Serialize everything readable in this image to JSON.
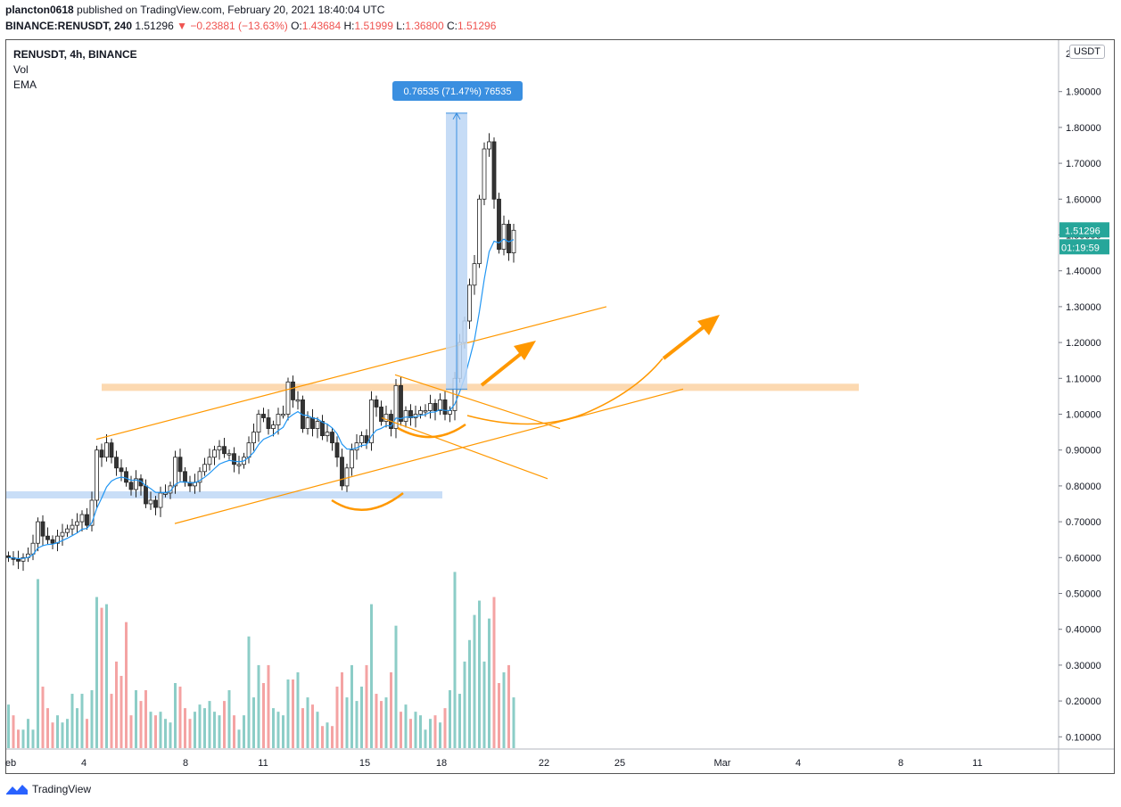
{
  "header": {
    "author": "plancton0618",
    "published_text": "published on TradingView.com, February 20, 2021 18:40:04 UTC",
    "symbol_line": "BINANCE:RENUSDT, 240",
    "last": "1.51296",
    "change": "▼ −0.23881 (−13.63%)",
    "o_label": "O:",
    "o_val": "1.43684",
    "h_label": "H:",
    "h_val": "1.51999",
    "l_label": "L:",
    "l_val": "1.36800",
    "c_label": "C:",
    "c_val": "1.51296"
  },
  "legend": {
    "symbol": "RENUSDT, 4h, BINANCE",
    "vol": "Vol",
    "ema": "EMA"
  },
  "axis": {
    "unit_badge": "USDT",
    "top_partial": "2",
    "price_badge": "1.51296",
    "countdown_badge": "01:19:59"
  },
  "measure_label": "0.76535 (71.47%) 76535",
  "footer": {
    "brand": "TradingView"
  },
  "colors": {
    "up": "#26a69a",
    "down": "#ef5350",
    "vol_up": "#8ccdc7",
    "vol_down": "#f4a3a3",
    "ema": "#2196f3",
    "trend": "#ff9800",
    "zone_orange": "#fcd5a8",
    "zone_blue": "#c6dcf7",
    "measure": "#3a8fe0"
  },
  "chart_data": {
    "type": "candlestick",
    "timeframe": "4h",
    "price_ticks": [
      "1.90000",
      "1.80000",
      "1.70000",
      "1.60000",
      "1.50000",
      "1.40000",
      "1.30000",
      "1.20000",
      "1.10000",
      "1.00000",
      "0.90000",
      "0.80000",
      "0.70000",
      "0.60000",
      "0.50000",
      "0.40000",
      "0.30000",
      "0.20000",
      "0.10000"
    ],
    "x_ticks": [
      "eb",
      "4",
      "8",
      "11",
      "15",
      "18",
      "22",
      "25",
      "Mar",
      "4",
      "8",
      "11"
    ],
    "ylim": [
      0.06,
      2.02
    ],
    "candles_close": [
      0.6,
      0.595,
      0.59,
      0.6,
      0.61,
      0.64,
      0.7,
      0.66,
      0.65,
      0.64,
      0.66,
      0.67,
      0.68,
      0.69,
      0.7,
      0.72,
      0.69,
      0.76,
      0.9,
      0.88,
      0.92,
      0.88,
      0.85,
      0.84,
      0.81,
      0.79,
      0.82,
      0.8,
      0.75,
      0.76,
      0.74,
      0.78,
      0.78,
      0.8,
      0.88,
      0.84,
      0.81,
      0.8,
      0.81,
      0.84,
      0.86,
      0.88,
      0.9,
      0.91,
      0.89,
      0.89,
      0.86,
      0.86,
      0.88,
      0.92,
      0.95,
      1.0,
      0.99,
      0.96,
      0.97,
      1.0,
      1.0,
      1.09,
      1.04,
      1.04,
      0.96,
      0.99,
      0.96,
      0.98,
      0.94,
      0.95,
      0.92,
      0.88,
      0.8,
      0.85,
      0.9,
      0.92,
      0.94,
      0.92,
      1.04,
      1.02,
      0.98,
      1.0,
      0.96,
      1.08,
      0.98,
      1.01,
      0.99,
      1.0,
      1.01,
      1.01,
      1.03,
      1.01,
      1.04,
      1.0,
      1.01,
      1.1,
      1.2,
      1.26,
      1.36,
      1.42,
      1.6,
      1.74,
      1.76,
      1.6,
      1.46,
      1.53,
      1.45,
      1.513
    ],
    "volumes": [
      0.19,
      0.16,
      0.12,
      0.12,
      0.15,
      0.12,
      0.54,
      0.24,
      0.18,
      0.14,
      0.16,
      0.14,
      0.15,
      0.22,
      0.18,
      0.22,
      0.15,
      0.23,
      0.49,
      0.46,
      0.47,
      0.22,
      0.31,
      0.27,
      0.42,
      0.16,
      0.23,
      0.2,
      0.23,
      0.17,
      0.16,
      0.17,
      0.15,
      0.14,
      0.25,
      0.24,
      0.18,
      0.15,
      0.17,
      0.19,
      0.18,
      0.2,
      0.17,
      0.16,
      0.2,
      0.23,
      0.16,
      0.12,
      0.16,
      0.38,
      0.21,
      0.3,
      0.25,
      0.3,
      0.18,
      0.17,
      0.16,
      0.26,
      0.26,
      0.28,
      0.18,
      0.21,
      0.19,
      0.17,
      0.13,
      0.14,
      0.13,
      0.24,
      0.28,
      0.21,
      0.3,
      0.2,
      0.24,
      0.3,
      0.47,
      0.22,
      0.2,
      0.21,
      0.28,
      0.41,
      0.17,
      0.19,
      0.15,
      0.17,
      0.16,
      0.12,
      0.15,
      0.16,
      0.14,
      0.18,
      0.23,
      0.56,
      0.22,
      0.31,
      0.37,
      0.44,
      0.48,
      0.31,
      0.43,
      0.49,
      0.25,
      0.28,
      0.3,
      0.21
    ]
  }
}
